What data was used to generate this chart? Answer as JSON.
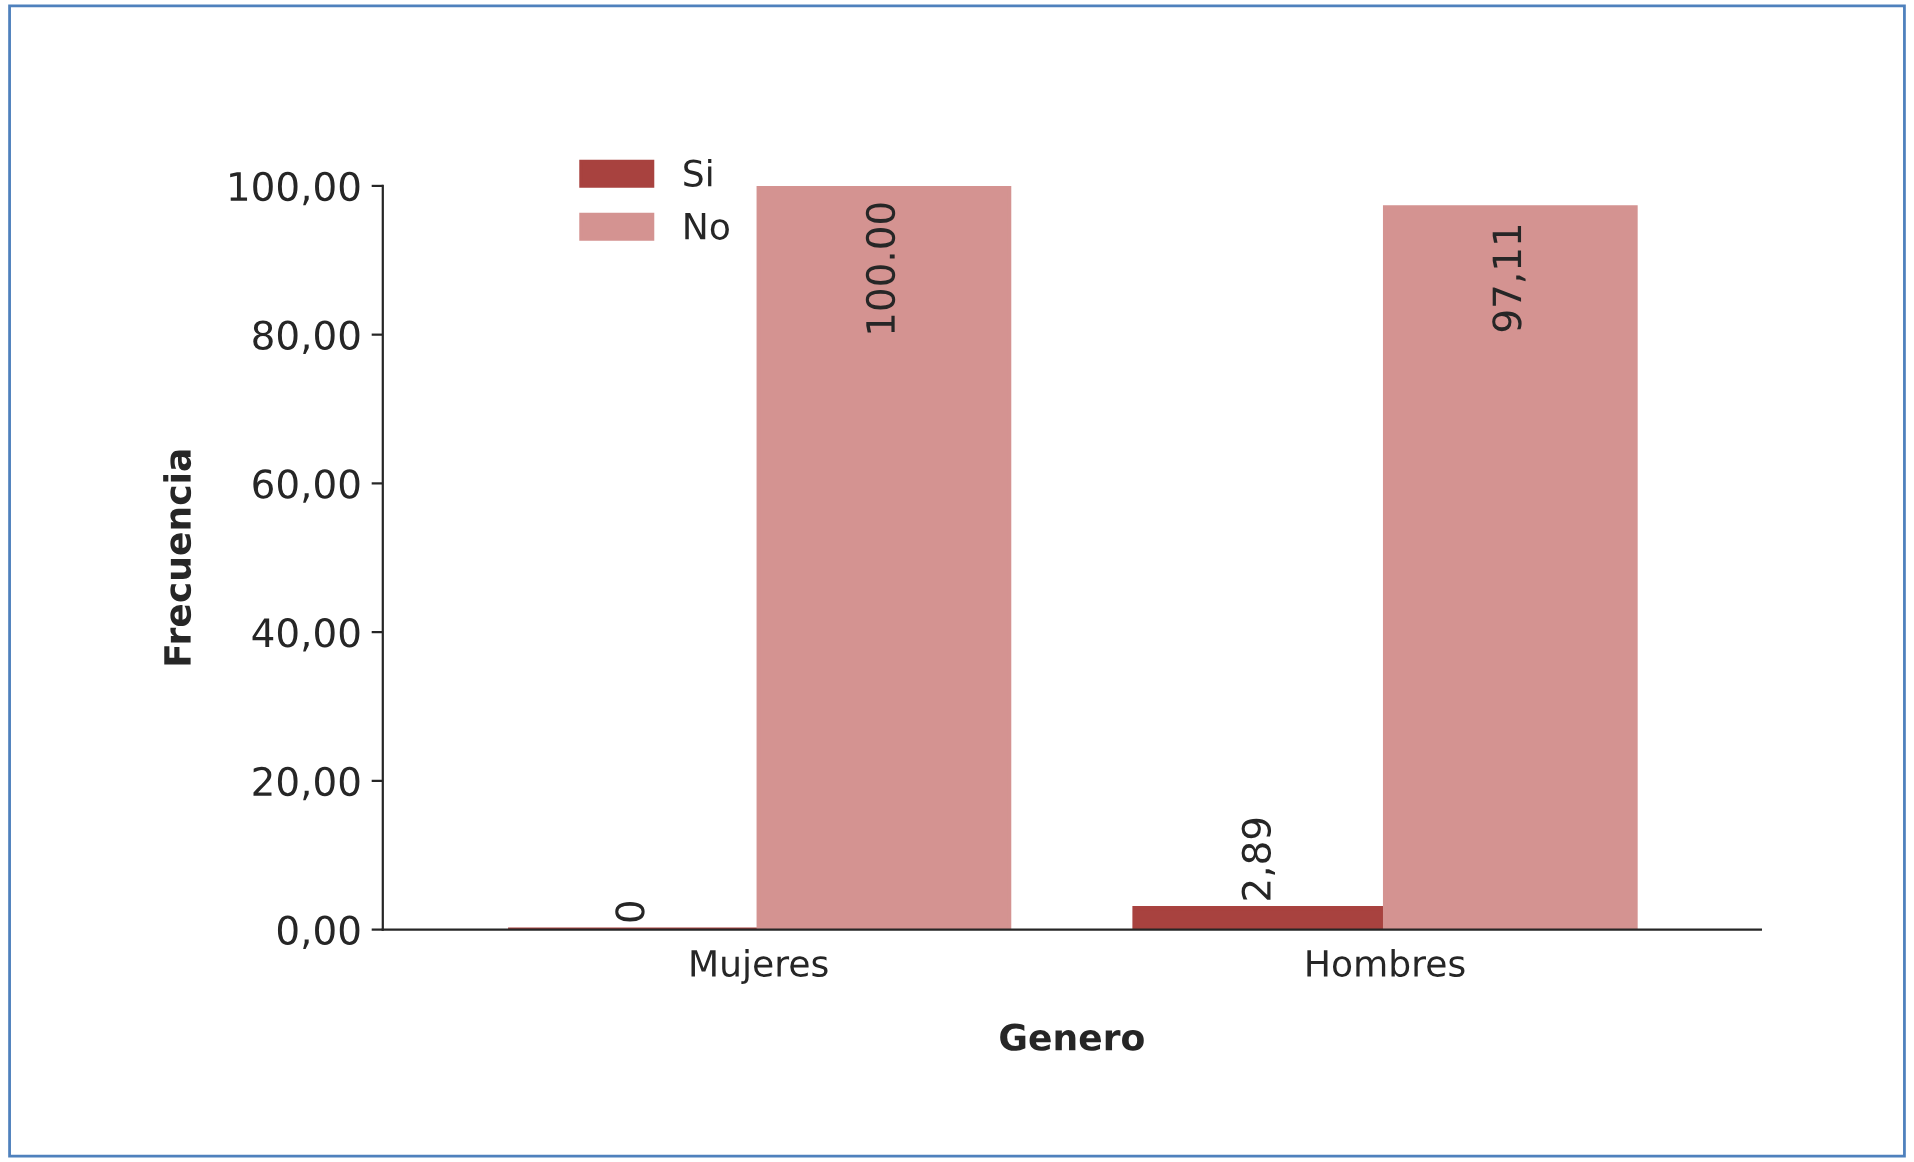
{
  "chart_data": {
    "type": "bar",
    "xlabel": "Genero",
    "ylabel": "Frecuencia",
    "categories": [
      "Mujeres",
      "Hombres"
    ],
    "series": [
      {
        "name": "Si",
        "color": "#a8423f",
        "values": [
          0,
          2.89
        ],
        "value_labels": [
          "0",
          "2,89"
        ]
      },
      {
        "name": "No",
        "color": "#d49391",
        "values": [
          100,
          97.11
        ],
        "value_labels": [
          "100.00",
          "97,11"
        ]
      }
    ],
    "ylim": [
      0,
      100
    ],
    "yticks": [
      {
        "value": 0,
        "label": "0,00"
      },
      {
        "value": 20,
        "label": "20,00"
      },
      {
        "value": 40,
        "label": "40,00"
      },
      {
        "value": 60,
        "label": "60,00"
      },
      {
        "value": 80,
        "label": "80,00"
      },
      {
        "value": 100,
        "label": "100,00"
      }
    ],
    "grid": false,
    "legend": "top left"
  }
}
